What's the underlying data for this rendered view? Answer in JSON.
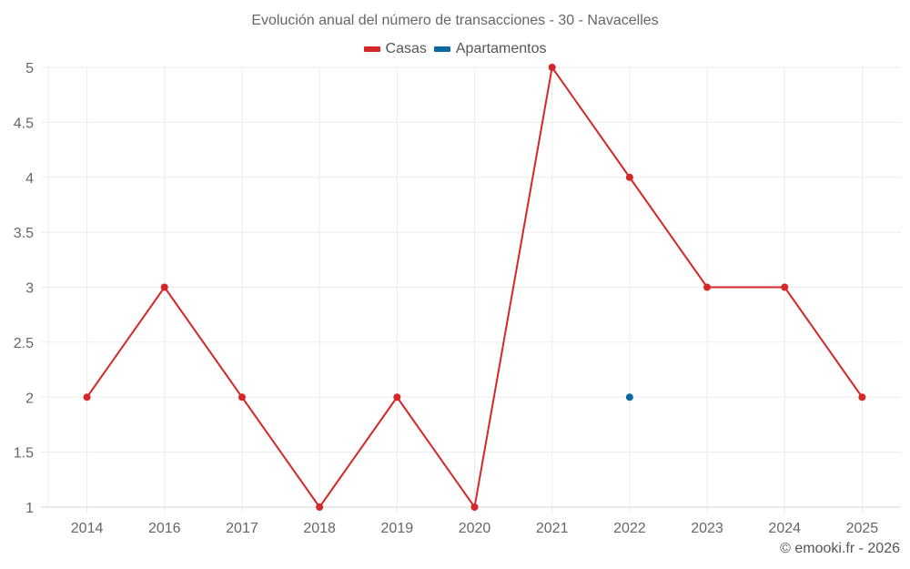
{
  "chart_data": {
    "type": "line",
    "title": "Evolución anual del número de transacciones - 30 - Navacelles",
    "xlabel": "",
    "ylabel": "",
    "categories": [
      "2014",
      "2016",
      "2017",
      "2018",
      "2019",
      "2020",
      "2021",
      "2022",
      "2023",
      "2024",
      "2025"
    ],
    "series": [
      {
        "name": "Casas",
        "color": "#d62728",
        "values": [
          2,
          3,
          2,
          1,
          2,
          1,
          5,
          4,
          3,
          3,
          2
        ]
      },
      {
        "name": "Apartamentos",
        "color": "#0b6aa2",
        "values": [
          null,
          null,
          null,
          null,
          null,
          null,
          null,
          2,
          null,
          null,
          null
        ]
      }
    ],
    "ylim": [
      1,
      5
    ],
    "yticks": [
      "1",
      "1.5",
      "2",
      "2.5",
      "3",
      "3.5",
      "4",
      "4.5",
      "5"
    ],
    "grid": true,
    "legend_position": "top"
  },
  "header": {
    "title": "Evolución anual del número de transacciones - 30 - Navacelles"
  },
  "legend": [
    {
      "label": "Casas",
      "color": "#d62728"
    },
    {
      "label": "Apartamentos",
      "color": "#0b6aa2"
    }
  ],
  "footer": {
    "credit": "© emooki.fr - 2026"
  }
}
